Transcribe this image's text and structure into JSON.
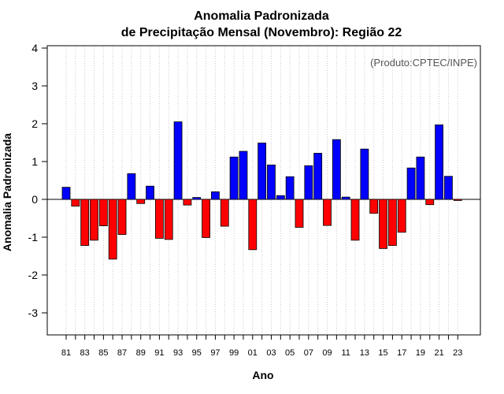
{
  "chart_data": {
    "type": "bar",
    "title": "Anomalia Padronizada",
    "subtitle": "de Precipitação Mensal (Novembro): Região 22",
    "xlabel": "Ano",
    "ylabel": "Anomalia Padronizada",
    "credit": "(Produto:CPTEC/INPE)",
    "ylim": [
      -3.6,
      4.1
    ],
    "yticks": [
      4,
      3,
      2,
      1,
      0,
      -1,
      -2,
      -3
    ],
    "grid": "vertical dotted",
    "positive_color": "#0000ff",
    "negative_color": "#ff0000",
    "categories": [
      "81",
      "82",
      "83",
      "84",
      "85",
      "86",
      "87",
      "88",
      "89",
      "90",
      "91",
      "92",
      "93",
      "94",
      "95",
      "96",
      "97",
      "98",
      "99",
      "00",
      "01",
      "02",
      "03",
      "04",
      "05",
      "06",
      "07",
      "08",
      "09",
      "10",
      "11",
      "12",
      "13",
      "14",
      "15",
      "16",
      "17",
      "18",
      "19",
      "20",
      "21",
      "22",
      "23"
    ],
    "xtick_labels": [
      "81",
      "83",
      "85",
      "87",
      "89",
      "91",
      "93",
      "95",
      "97",
      "99",
      "01",
      "03",
      "05",
      "07",
      "09",
      "11",
      "13",
      "15",
      "17",
      "19",
      "21",
      "23"
    ],
    "values": [
      0.32,
      -0.18,
      -1.22,
      -1.08,
      -0.7,
      -1.58,
      -0.93,
      0.68,
      -0.11,
      0.35,
      -1.03,
      -1.06,
      2.05,
      -0.15,
      0.05,
      -1.01,
      0.2,
      -0.71,
      1.12,
      1.27,
      -1.33,
      1.49,
      0.91,
      0.1,
      0.6,
      -0.74,
      0.89,
      1.22,
      -0.69,
      1.58,
      0.06,
      -1.08,
      1.33,
      -0.37,
      -1.3,
      -1.22,
      -0.87,
      0.83,
      1.12,
      -0.14,
      1.97,
      0.61,
      -0.03
    ]
  }
}
